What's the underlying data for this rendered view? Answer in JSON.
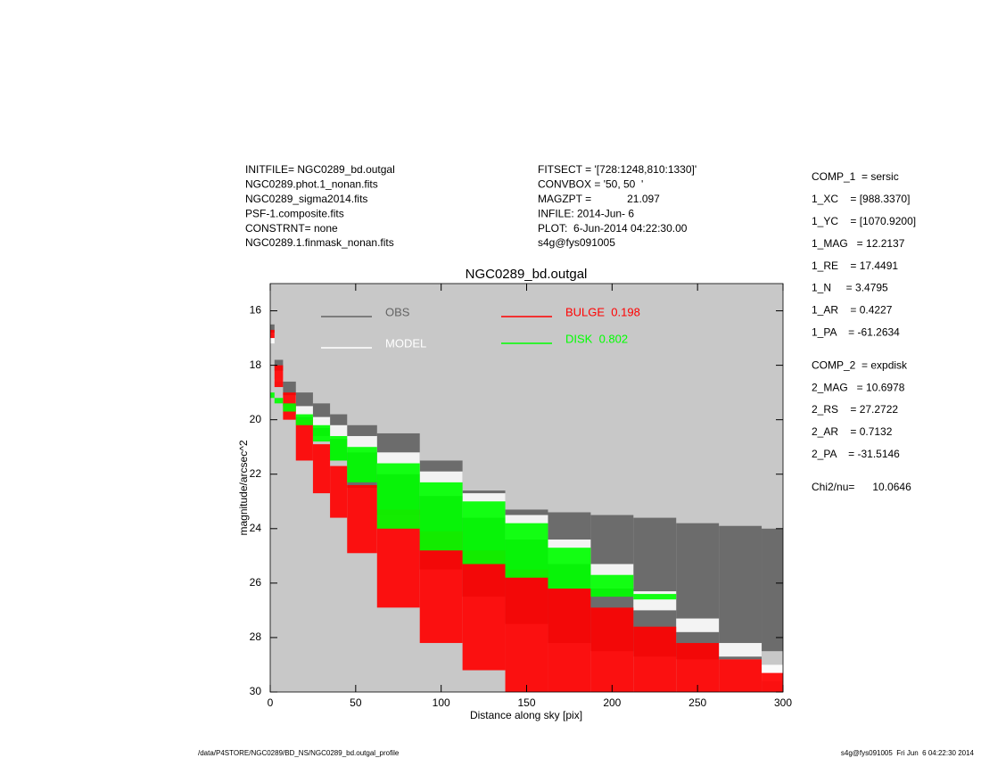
{
  "header": {
    "left": [
      "INITFILE= NGC0289_bd.outgal",
      "NGC0289.phot.1_nonan.fits",
      "NGC0289_sigma2014.fits",
      "PSF-1.composite.fits",
      "CONSTRNT= none",
      "NGC0289.1.finmask_nonan.fits"
    ],
    "middle": [
      "FITSECT = '[728:1248,810:1330]'",
      "CONVBOX = '50, 50  '",
      "MAGZPT =            21.097",
      "INFILE: 2014-Jun- 6",
      "PLOT:  6-Jun-2014 04:22:30.00",
      "s4g@fys091005"
    ]
  },
  "params": [
    [
      "COMP_1  = sersic",
      "1_XC    = [988.3370]",
      "1_YC    = [1070.9200]",
      "1_MAG   = 12.2137",
      "1_RE    = 17.4491",
      "1_N     = 3.4795",
      "1_AR    = 0.4227",
      "1_PA    = -61.2634"
    ],
    [
      "COMP_2  = expdisk",
      "2_MAG   = 10.6978",
      "2_RS    = 27.2722",
      "2_AR    = 0.7132",
      "2_PA    = -31.5146"
    ],
    [
      "Chi2/nu=      10.0646"
    ]
  ],
  "footer": {
    "left": "/data/P4STORE/NGC0289/BD_NS/NGC0289_bd.outgal_profile",
    "right": "s4g@fys091005  Fri Jun  6 04:22:30 2014"
  },
  "chart_data": {
    "type": "band",
    "title": "NGC0289_bd.outgal",
    "x_label": "Distance along sky [pix]",
    "y_label": "magnitude/arcsec^2",
    "xlim": [
      0,
      300
    ],
    "ylim": [
      15,
      30
    ],
    "y_reversed": true,
    "background": "#c8c8c8",
    "xticks": [
      0,
      50,
      100,
      150,
      200,
      250,
      300
    ],
    "yticks": [
      16,
      18,
      20,
      22,
      24,
      26,
      28,
      30
    ],
    "x": [
      0,
      5,
      10,
      20,
      30,
      40,
      50,
      75,
      100,
      125,
      150,
      175,
      200,
      225,
      250,
      275,
      300
    ],
    "series": [
      {
        "name": "OBS",
        "color": "#646464",
        "values": [
          16.5,
          17.8,
          18.6,
          19.0,
          19.4,
          19.8,
          20.2,
          20.5,
          21.5,
          22.6,
          23.3,
          23.4,
          23.5,
          23.6,
          23.8,
          23.9,
          24.0
        ],
        "values_low": [
          17.0,
          18.5,
          19.5,
          20.0,
          20.6,
          21.5,
          22.5,
          23.5,
          25.5,
          26.5,
          27.5,
          28.2,
          28.5,
          28.7,
          28.8,
          28.8,
          28.5
        ]
      },
      {
        "name": "MODEL",
        "color": "#ffffff",
        "values": [
          16.8,
          18.2,
          19.1,
          19.5,
          19.9,
          20.2,
          20.6,
          21.2,
          21.9,
          22.7,
          23.5,
          24.4,
          25.3,
          26.3,
          27.3,
          28.2,
          29.0
        ],
        "values_low": [
          17.2,
          18.6,
          19.4,
          19.9,
          20.3,
          20.7,
          21.2,
          22.0,
          22.8,
          23.6,
          24.4,
          25.3,
          26.2,
          27.0,
          27.8,
          28.7,
          29.6
        ]
      },
      {
        "name": "BULGE  0.198",
        "color": "#ff0000",
        "values": [
          16.7,
          18.0,
          19.0,
          20.0,
          20.9,
          21.7,
          22.4,
          23.3,
          24.1,
          24.8,
          25.5,
          26.2,
          26.9,
          27.6,
          28.2,
          28.8,
          29.3
        ],
        "values_low": [
          17.0,
          18.8,
          20.0,
          21.5,
          22.7,
          23.6,
          24.9,
          26.9,
          28.2,
          29.2,
          30,
          30,
          30,
          30,
          30,
          30,
          30
        ]
      },
      {
        "name": "DISK  0.802",
        "color": "#00ff00",
        "values": [
          19.0,
          19.2,
          19.4,
          19.8,
          20.2,
          20.6,
          21.0,
          21.6,
          22.3,
          23.0,
          23.8,
          24.7,
          25.7,
          26.4,
          null,
          null,
          null
        ],
        "values_low": [
          19.2,
          19.4,
          19.7,
          20.2,
          20.8,
          21.5,
          22.3,
          24.0,
          24.8,
          25.3,
          25.8,
          26.2,
          26.5,
          26.6,
          null,
          null,
          null
        ]
      }
    ]
  }
}
